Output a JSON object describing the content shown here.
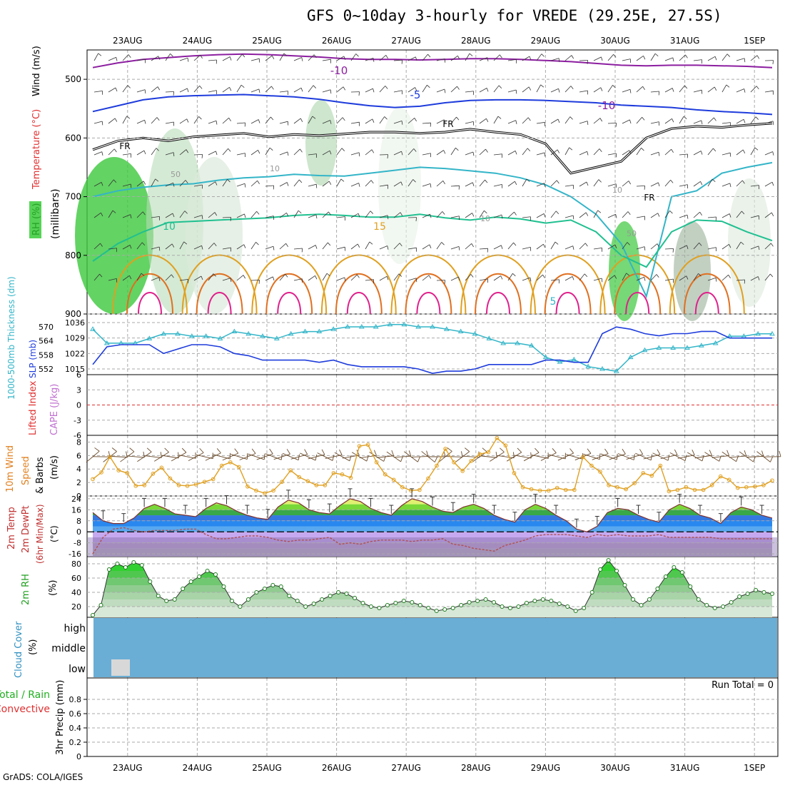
{
  "title": "GFS 0~10day 3-hourly for VREDE (29.25E, 27.5S)",
  "footer": "GrADS: COLA/IGES",
  "dates": [
    "23AUG",
    "24AUG",
    "25AUG",
    "26AUG",
    "27AUG",
    "28AUG",
    "29AUG",
    "30AUG",
    "31AUG",
    "1SEP"
  ],
  "colors": {
    "purple": "#8c1ea0",
    "blue": "#1e3cdc",
    "cyan": "#33b5c8",
    "teal": "#20c090",
    "orange": "#e0a020",
    "red": "#e02020",
    "magenta": "#e0208c",
    "green": "#2cc82c",
    "cloud": "#6aaed6",
    "grid": "#aaaaaa"
  },
  "chart_data": [
    {
      "type": "heatmap",
      "panel": "upper-air",
      "ylabel_parts": [
        "RH (%)",
        "Temperature (°C)",
        "Wind (m/s)"
      ],
      "ylabel_sub": "(millibars)",
      "y_ticks": [
        500,
        600,
        700,
        800,
        900
      ],
      "ylim": [
        900,
        450
      ],
      "contour_labels": [
        "-10",
        "-5",
        "FR",
        "FR",
        "-10",
        "FR",
        "10",
        "15",
        "5",
        "10",
        "50",
        "50",
        "10",
        "10"
      ],
      "temperature_isolines": [
        {
          "name": "-10",
          "color": "purple",
          "p": [
            480,
            472,
            466,
            463,
            460,
            458,
            457,
            458,
            460,
            462,
            465,
            466,
            466,
            467,
            466,
            465,
            465,
            466,
            468,
            470,
            473,
            476,
            477,
            476,
            476,
            477,
            478,
            480
          ]
        },
        {
          "name": "-5",
          "color": "blue",
          "p": [
            555,
            545,
            535,
            530,
            528,
            527,
            526,
            528,
            530,
            534,
            540,
            545,
            548,
            546,
            540,
            536,
            535,
            535,
            536,
            538,
            540,
            544,
            546,
            548,
            552,
            555,
            557,
            560
          ]
        },
        {
          "name": "FR",
          "color": "black",
          "p": [
            620,
            605,
            600,
            605,
            598,
            595,
            592,
            598,
            594,
            596,
            593,
            590,
            590,
            592,
            590,
            585,
            590,
            594,
            610,
            660,
            650,
            640,
            600,
            584,
            580,
            582,
            578,
            575
          ]
        },
        {
          "name": "5",
          "color": "cyan",
          "p": [
            700,
            690,
            684,
            680,
            678,
            672,
            668,
            666,
            662,
            664,
            665,
            660,
            655,
            650,
            652,
            656,
            660,
            668,
            680,
            700,
            730,
            780,
            870,
            700,
            690,
            660,
            650,
            642
          ]
        },
        {
          "name": "10",
          "color": "teal",
          "p": [
            810,
            780,
            760,
            744,
            742,
            740,
            738,
            736,
            732,
            730,
            732,
            735,
            735,
            730,
            736,
            740,
            735,
            738,
            745,
            740,
            760,
            800,
            820,
            760,
            740,
            742,
            760,
            775
          ]
        }
      ]
    },
    {
      "type": "line",
      "panel": "thickness-slp",
      "ylabel_parts": [
        "1000-500mb Thickness (dm)",
        "SLP (mb)"
      ],
      "thickness_ticks": [
        552,
        558,
        564,
        570
      ],
      "slp_ticks": [
        1015,
        1022,
        1029,
        1036
      ],
      "series": [
        {
          "name": "1000-500mb Thickness (dm)",
          "color": "cyan",
          "values": [
            569,
            563,
            563,
            563,
            565,
            567,
            567,
            566,
            566,
            565,
            568,
            567,
            566,
            565,
            567,
            568,
            568,
            569,
            570,
            570,
            570,
            571,
            571,
            570,
            570,
            569,
            568,
            567,
            565,
            563,
            563,
            562,
            557,
            555,
            556,
            553,
            552,
            551,
            557,
            560,
            561,
            561,
            561,
            562,
            563,
            566,
            566,
            567,
            567
          ]
        },
        {
          "name": "SLP (mb)",
          "color": "blue",
          "values": [
            1017,
            1025,
            1026,
            1026,
            1026,
            1022,
            1024,
            1026,
            1026,
            1025,
            1022,
            1021,
            1019,
            1019,
            1019,
            1019,
            1018,
            1019,
            1017,
            1016,
            1016,
            1016,
            1016,
            1015,
            1013,
            1014,
            1014,
            1015,
            1017,
            1017,
            1017,
            1017,
            1019,
            1019,
            1018,
            1018,
            1031,
            1034,
            1033,
            1031,
            1030,
            1031,
            1031,
            1032,
            1032,
            1029,
            1029,
            1029,
            1029
          ]
        }
      ]
    },
    {
      "type": "line",
      "panel": "cape-li",
      "ylabel_parts": [
        "Lifted Index",
        "CAPE (J/kg)"
      ],
      "y_ticks": [
        -6,
        -3,
        0,
        3,
        6
      ],
      "series": [
        {
          "name": "Lifted Index",
          "color": "red",
          "values": []
        },
        {
          "name": "CAPE (J/kg)",
          "color": "purple",
          "values": []
        }
      ]
    },
    {
      "type": "line",
      "panel": "wind10m",
      "ylabel_parts": [
        "10m Wind",
        "Speed",
        "& Barbs",
        "(m/s)"
      ],
      "y_ticks": [
        0,
        2,
        4,
        6,
        8
      ],
      "ylim": [
        0,
        9
      ],
      "series": [
        {
          "name": "10m Wind Speed",
          "color": "orange",
          "values": [
            2.5,
            3.5,
            5.8,
            3.8,
            3.4,
            1.5,
            1.6,
            3.3,
            4.2,
            2.6,
            1.6,
            1.5,
            1.7,
            2.1,
            2.5,
            4.5,
            5.0,
            4.3,
            1.4,
            0.8,
            0.4,
            0.8,
            2.1,
            3.8,
            2.8,
            2.2,
            1.6,
            1.6,
            3.4,
            3.2,
            2.7,
            7.4,
            7.6,
            5.0,
            3.2,
            2.4,
            1.3,
            0.8,
            0.9,
            2.6,
            4.5,
            7.0,
            5.0,
            3.7,
            5.2,
            6.2,
            6.5,
            8.6,
            7.5,
            3.4,
            1.3,
            1.0,
            0.8,
            0.8,
            1.2,
            0.9,
            0.9,
            5.8,
            4.5,
            3.6,
            1.6,
            1.3,
            1.0,
            1.9,
            3.4,
            3.0,
            4.5,
            0.7,
            0.9,
            1.3,
            0.9,
            0.9,
            1.6,
            2.9,
            2.4,
            1.2,
            1.3,
            1.4,
            1.6,
            2.3
          ]
        }
      ]
    },
    {
      "type": "area",
      "panel": "temp2m",
      "ylabel_parts": [
        "2m Temp",
        "2m DewPt",
        "(6hr Min/Max)",
        "(°C)"
      ],
      "y_ticks": [
        -16,
        -8,
        0,
        8,
        16,
        24
      ],
      "ylim": [
        -18,
        26
      ],
      "series": [
        {
          "name": "2m Temp",
          "color": "purple",
          "values": [
            14,
            8,
            6,
            6,
            10,
            17,
            20,
            17,
            13,
            12,
            11,
            17,
            21,
            19,
            15,
            12,
            10,
            9,
            18,
            23,
            21,
            16,
            14,
            13,
            19,
            24,
            22,
            17,
            14,
            12,
            19,
            24,
            22,
            18,
            15,
            14,
            18,
            20,
            17,
            12,
            9,
            7,
            16,
            20,
            17,
            12,
            8,
            2,
            0,
            4,
            14,
            17,
            16,
            12,
            9,
            7,
            16,
            20,
            17,
            12,
            10,
            6,
            14,
            18,
            16,
            12,
            10
          ]
        },
        {
          "name": "2m DewPt",
          "color": "purple",
          "values": [
            -16,
            -4,
            2,
            3,
            1,
            0,
            1,
            1,
            1,
            2,
            2,
            -2,
            -5,
            -5,
            -4,
            -3,
            -3,
            -4,
            -6,
            -7,
            -6,
            -6,
            -5,
            -4,
            -9,
            -8,
            -9,
            -7,
            -6,
            -6,
            -6,
            -7,
            -6,
            -6,
            -5,
            -9,
            -10,
            -12,
            -13,
            -14,
            -10,
            -8,
            -6,
            -3,
            -2,
            -2,
            -2,
            -3,
            -4,
            -2,
            -3,
            -2,
            -3,
            -3,
            -3,
            -2,
            -4,
            -4,
            -4,
            -4,
            -4,
            -5,
            -5,
            -5,
            -5,
            -5,
            -5
          ]
        }
      ]
    },
    {
      "type": "area",
      "panel": "rh2m",
      "ylabel_parts": [
        "2m RH",
        "(%)"
      ],
      "y_ticks": [
        20,
        40,
        60,
        80
      ],
      "ylim": [
        5,
        90
      ],
      "series": [
        {
          "name": "2m RH",
          "color": "green",
          "values": [
            8,
            22,
            72,
            80,
            75,
            82,
            78,
            55,
            35,
            28,
            30,
            45,
            55,
            62,
            70,
            65,
            48,
            28,
            20,
            30,
            40,
            45,
            50,
            48,
            35,
            28,
            20,
            24,
            30,
            35,
            40,
            38,
            32,
            25,
            20,
            18,
            22,
            25,
            28,
            26,
            22,
            18,
            14,
            16,
            18,
            22,
            26,
            28,
            30,
            26,
            20,
            18,
            20,
            25,
            28,
            30,
            28,
            24,
            20,
            14,
            18,
            40,
            72,
            85,
            70,
            50,
            30,
            22,
            30,
            45,
            62,
            75,
            68,
            48,
            30,
            22,
            18,
            20,
            26,
            34,
            38,
            43,
            40,
            38
          ]
        }
      ]
    },
    {
      "type": "heatmap",
      "panel": "cloud",
      "ylabel_parts": [
        "Cloud Cover",
        "(%)"
      ],
      "levels": [
        "high",
        "middle",
        "low"
      ],
      "low_block": "gray"
    },
    {
      "type": "bar",
      "panel": "precip",
      "ylabel_parts": [
        "Total / Rain",
        "Convective",
        "3hr Precip (mm)"
      ],
      "y_ticks": [
        0,
        0.2,
        0.4,
        0.6,
        0.8
      ],
      "y_tick_labels": [
        "0",
        "0.2",
        "0.4",
        "0.6",
        "0.8"
      ],
      "ylim": [
        0,
        1
      ],
      "run_total_label": "Run Total = 0",
      "values": []
    }
  ]
}
